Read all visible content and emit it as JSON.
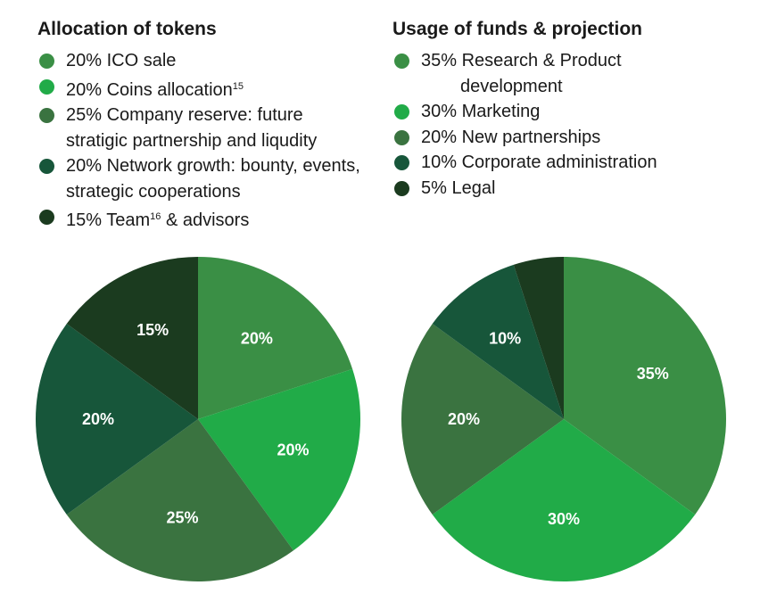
{
  "chart_data": [
    {
      "type": "pie",
      "title": "Allocation of tokens",
      "slices": [
        {
          "label": "20% ICO sale",
          "sup": "",
          "value": 20,
          "color": "#3a8f45",
          "value_label": "20%"
        },
        {
          "label": "20% Coins allocation",
          "sup": "15",
          "value": 20,
          "color": "#21ab48",
          "value_label": "20%"
        },
        {
          "label": "25% Company reserve: future stratigic partnership and liqudity",
          "sup": "",
          "value": 25,
          "color": "#3a7340",
          "value_label": "25%"
        },
        {
          "label": "20% Network growth: bounty, events, strategic cooperations",
          "sup": "",
          "value": 20,
          "color": "#17563a",
          "value_label": "20%"
        },
        {
          "label": "15% Team & advisors",
          "sup": "16",
          "value": 15,
          "color": "#1b3b1f",
          "value_label": "15%"
        }
      ]
    },
    {
      "type": "pie",
      "title": "Usage of funds & projection",
      "slices": [
        {
          "label": "35% Research & Product development",
          "value": 35,
          "color": "#3a8f45",
          "value_label": "35%"
        },
        {
          "label": "30% Marketing",
          "value": 30,
          "color": "#21ab48",
          "value_label": "30%"
        },
        {
          "label": "20% New partnerships",
          "value": 20,
          "color": "#3a7340",
          "value_label": "20%"
        },
        {
          "label": "10% Corporate administration",
          "value": 10,
          "color": "#17563a",
          "value_label": "10%"
        },
        {
          "label": "5% Legal",
          "value": 5,
          "color": "#1b3b1f",
          "value_label": ""
        }
      ]
    }
  ],
  "left_legend": {
    "title": "Allocation of tokens",
    "items": [
      {
        "line1": "20% ICO sale"
      },
      {
        "line1": "20% Coins allocation",
        "sup": "15"
      },
      {
        "line1": "25% Company reserve: future",
        "line2": "stratigic partnership and liqudity"
      },
      {
        "line1": "20% Network growth: bounty, events,",
        "line2": "strategic cooperations"
      },
      {
        "line1": "15% Team",
        "sup": "16",
        "rest": " & advisors"
      }
    ]
  },
  "right_legend": {
    "title": "Usage of funds & projection",
    "items": [
      {
        "line1": "35% Research & Product",
        "line2": "development"
      },
      {
        "line1": "30% Marketing"
      },
      {
        "line1": "20% New partnerships"
      },
      {
        "line1": "10% Corporate administration"
      },
      {
        "line1": "5% Legal"
      }
    ]
  }
}
